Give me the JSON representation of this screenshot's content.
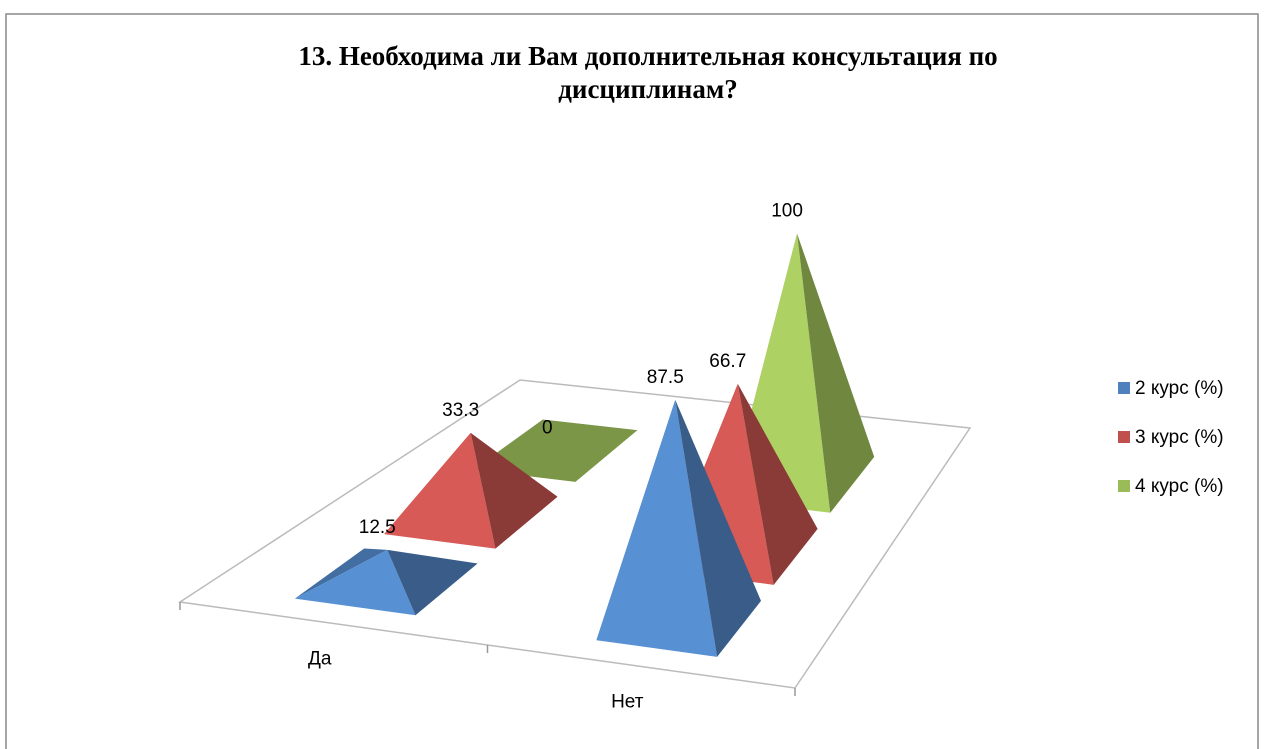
{
  "chart_data": {
    "type": "pyramid3d",
    "title": "13. Необходима ли Вам дополнительная консультация по дисциплинам?",
    "categories": [
      "Да",
      "Нет"
    ],
    "series": [
      {
        "name": "2 курс (%)",
        "color": "#4f81bd",
        "values": [
          12.5,
          87.5
        ]
      },
      {
        "name": "3 курс (%)",
        "color": "#c0504d",
        "values": [
          33.3,
          66.7
        ]
      },
      {
        "name": "4 курс (%)",
        "color": "#9bbb59",
        "values": [
          0,
          100
        ]
      }
    ],
    "legend": "right"
  }
}
